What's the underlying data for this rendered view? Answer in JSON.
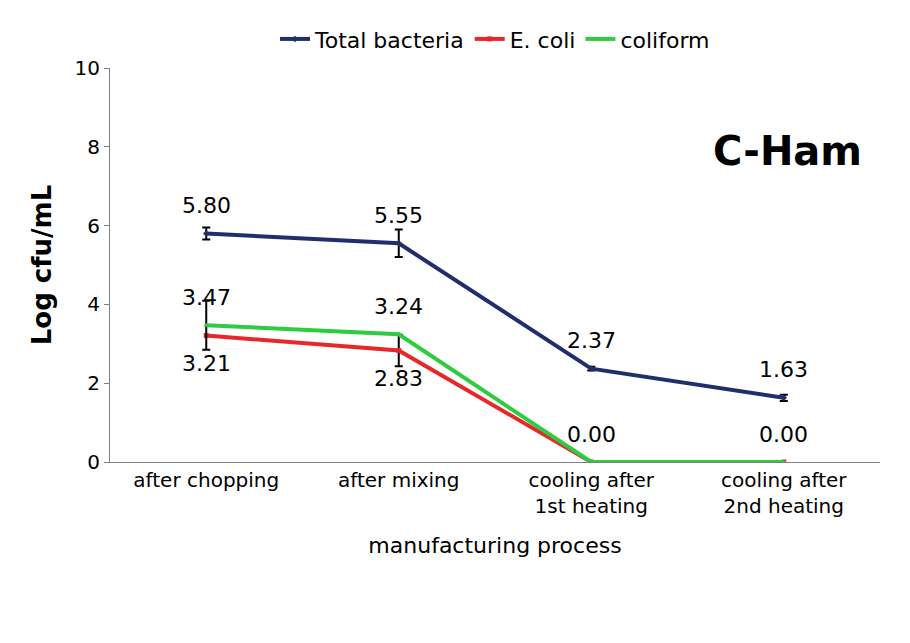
{
  "chart_data": {
    "type": "line",
    "title": "C-Ham",
    "x_label": "manufacturing process",
    "y_label": "Log cfu/mL",
    "categories": [
      "after chopping",
      "after mixing",
      "cooling after 1st heating",
      "cooling after 2nd heating"
    ],
    "series": [
      {
        "name": "Total bacteria",
        "color": "#1f2f6b",
        "marker": "diamond",
        "values": [
          5.8,
          5.55,
          2.37,
          1.63
        ],
        "value_labels": [
          "5.80",
          "5.55",
          "2.37",
          "1.63"
        ],
        "error": [
          0.15,
          0.35,
          0.05,
          0.08
        ]
      },
      {
        "name": "E. coli",
        "color": "#e8272b",
        "marker": "square",
        "values": [
          3.21,
          2.83,
          0,
          0
        ],
        "value_labels": [
          "3.21",
          "2.83",
          null,
          null
        ],
        "error": [
          null,
          0.4,
          null,
          null
        ]
      },
      {
        "name": "coliform",
        "color": "#2ecc40",
        "marker": "triangle-up",
        "values": [
          3.47,
          3.24,
          0,
          0
        ],
        "value_labels": [
          "3.47",
          "3.24",
          "0.00",
          "0.00"
        ],
        "error": [
          0.62,
          null,
          null,
          null
        ]
      }
    ],
    "ylim": [
      0,
      10
    ],
    "yticks": [
      0,
      2,
      4,
      6,
      8,
      10
    ],
    "grid": false,
    "legend": "top",
    "data_labels": true
  }
}
